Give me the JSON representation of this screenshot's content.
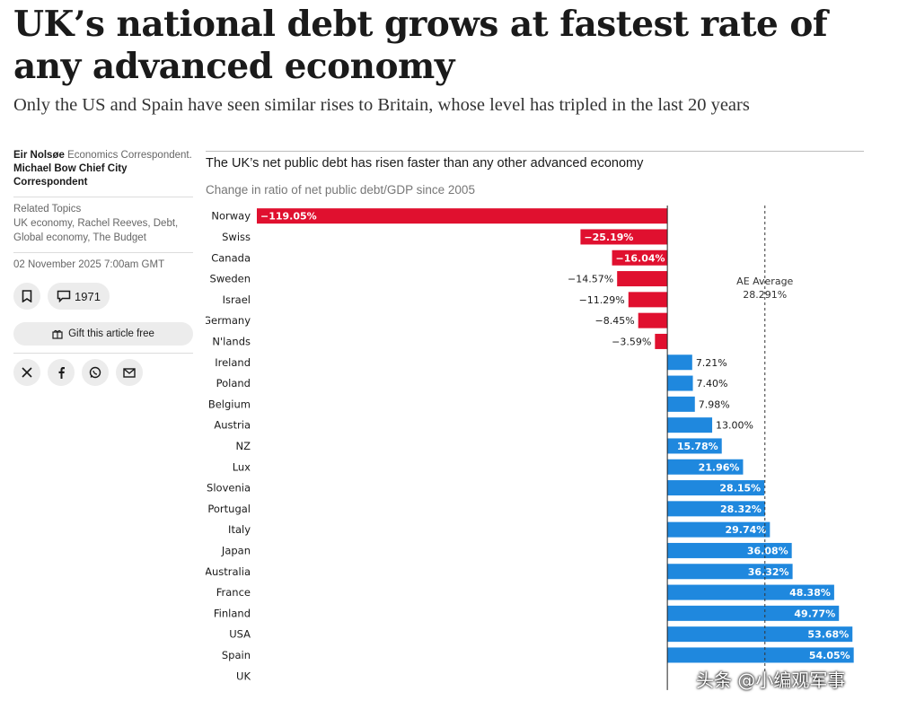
{
  "headline": "UK’s national debt grows at fastest rate of any advanced economy",
  "standfirst": "Only the US and Spain have seen similar rises to Britain, whose level has tripled in the last 20 years",
  "sidebar": {
    "author1": "Eir Nolsøe",
    "author1_role": "Economics Correspondent.",
    "author2": "Michael Bow",
    "author2_role": "Chief City Correspondent",
    "related_topics_label": "Related Topics",
    "related_topics": "UK economy, Rachel Reeves, Debt, Global economy, The Budget",
    "date": "02 November 2025 7:00am GMT",
    "comment_count": "1971",
    "gift_label": "Gift this article free",
    "share_icons": [
      "x-icon",
      "facebook-icon",
      "whatsapp-icon",
      "email-icon"
    ]
  },
  "watermark": "头条 @小编观军事",
  "chart_data": {
    "type": "bar",
    "orientation": "horizontal",
    "title": "The UK’s net public debt has risen faster than any other advanced economy",
    "subtitle": "Change in ratio of net public debt/GDP since 2005",
    "categories": [
      "Norway",
      "Swiss",
      "Canada",
      "Sweden",
      "Israel",
      "Germany",
      "N'lands",
      "Ireland",
      "Poland",
      "Belgium",
      "Austria",
      "NZ",
      "Lux",
      "Slovenia",
      "Portugal",
      "Italy",
      "Japan",
      "Australia",
      "France",
      "Finland",
      "USA",
      "Spain",
      "UK"
    ],
    "values": [
      -119.05,
      -25.19,
      -16.04,
      -14.57,
      -11.29,
      -8.45,
      -3.59,
      7.21,
      7.4,
      7.98,
      13.0,
      15.78,
      21.96,
      28.15,
      28.32,
      29.74,
      36.08,
      36.32,
      48.38,
      49.77,
      53.68,
      54.05,
      null
    ],
    "value_labels": [
      "−119.05%",
      "−25.19%",
      "−16.04%",
      "−14.57%",
      "−11.29%",
      "−8.45%",
      "−3.59%",
      "7.21%",
      "7.40%",
      "7.98%",
      "13.00%",
      "15.78%",
      "21.96%",
      "28.15%",
      "28.32%",
      "29.74%",
      "36.08%",
      "36.32%",
      "48.38%",
      "49.77%",
      "53.68%",
      "54.05%",
      ""
    ],
    "xlim": [
      -119.05,
      57
    ],
    "reference_line": {
      "label": "AE Average",
      "value_label": "28.291%",
      "value": 28.291
    },
    "colors": {
      "negative": "#e0102f",
      "positive": "#1f88de"
    }
  }
}
